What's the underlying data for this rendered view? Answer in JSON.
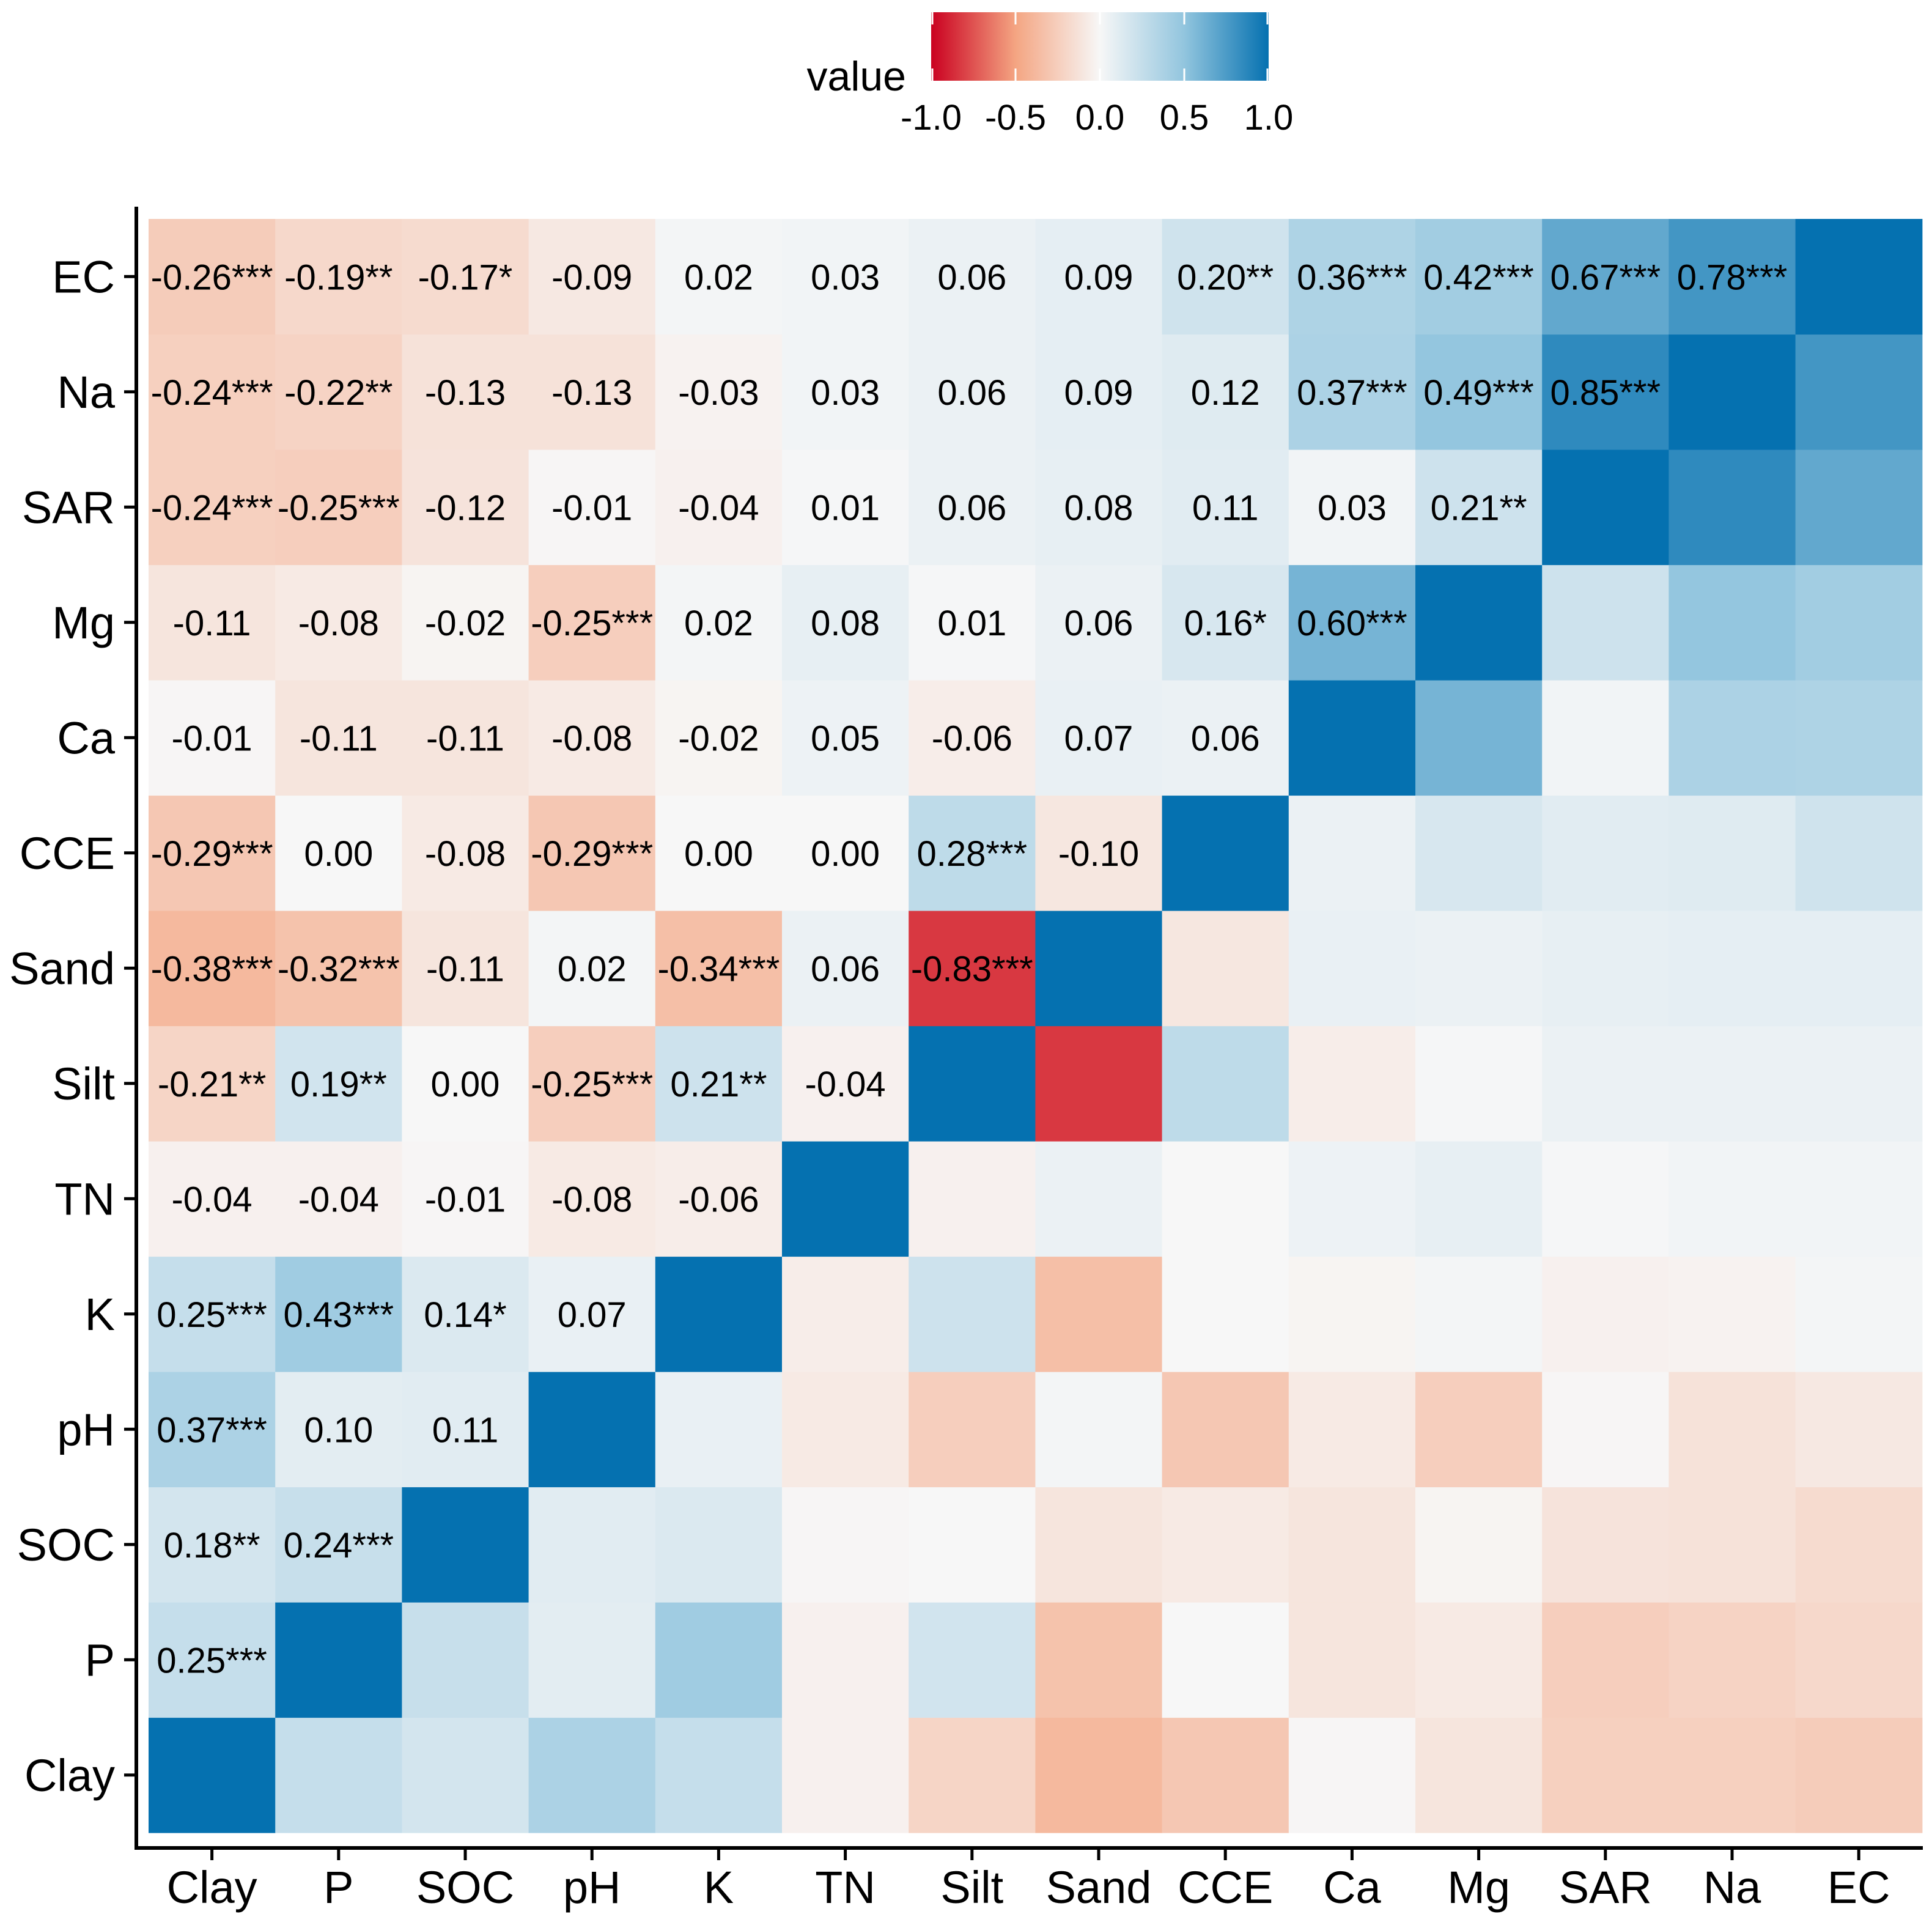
{
  "chart_data": {
    "type": "heatmap",
    "title": "",
    "xlabel": "",
    "ylabel": "",
    "variables": [
      "Clay",
      "P",
      "SOC",
      "pH",
      "K",
      "TN",
      "Silt",
      "Sand",
      "CCE",
      "Ca",
      "Mg",
      "SAR",
      "Na",
      "EC"
    ],
    "x_categories": [
      "Clay",
      "P",
      "SOC",
      "pH",
      "K",
      "TN",
      "Silt",
      "Sand",
      "CCE",
      "Ca",
      "Mg",
      "SAR",
      "Na",
      "EC"
    ],
    "y_categories_top_to_bottom": [
      "EC",
      "Na",
      "SAR",
      "Mg",
      "Ca",
      "CCE",
      "Sand",
      "Silt",
      "TN",
      "K",
      "pH",
      "SOC",
      "P",
      "Clay"
    ],
    "matrix": [
      [
        1.0,
        0.25,
        0.18,
        0.37,
        0.25,
        -0.04,
        -0.21,
        -0.38,
        -0.29,
        -0.01,
        -0.11,
        -0.24,
        -0.24,
        -0.26
      ],
      [
        0.25,
        1.0,
        0.24,
        0.1,
        0.43,
        -0.04,
        0.19,
        -0.32,
        0.0,
        -0.11,
        -0.08,
        -0.25,
        -0.22,
        -0.19
      ],
      [
        0.18,
        0.24,
        1.0,
        0.11,
        0.14,
        -0.01,
        0.0,
        -0.11,
        -0.08,
        -0.11,
        -0.02,
        -0.12,
        -0.13,
        -0.17
      ],
      [
        0.37,
        0.1,
        0.11,
        1.0,
        0.07,
        -0.08,
        -0.25,
        0.02,
        -0.29,
        -0.08,
        -0.25,
        -0.01,
        -0.13,
        -0.09
      ],
      [
        0.25,
        0.43,
        0.14,
        0.07,
        1.0,
        -0.06,
        0.21,
        -0.34,
        0.0,
        -0.02,
        0.02,
        -0.04,
        -0.03,
        0.02
      ],
      [
        -0.04,
        -0.04,
        -0.01,
        -0.08,
        -0.06,
        1.0,
        -0.04,
        0.06,
        0.0,
        0.05,
        0.08,
        0.01,
        0.03,
        0.03
      ],
      [
        -0.21,
        0.19,
        0.0,
        -0.25,
        0.21,
        -0.04,
        1.0,
        -0.83,
        0.28,
        -0.06,
        0.01,
        0.06,
        0.06,
        0.06
      ],
      [
        -0.38,
        -0.32,
        -0.11,
        0.02,
        -0.34,
        0.06,
        -0.83,
        1.0,
        -0.1,
        0.07,
        0.06,
        0.08,
        0.09,
        0.09
      ],
      [
        -0.29,
        0.0,
        -0.08,
        -0.29,
        0.0,
        0.0,
        0.28,
        -0.1,
        1.0,
        0.06,
        0.16,
        0.11,
        0.12,
        0.2
      ],
      [
        -0.01,
        -0.11,
        -0.11,
        -0.08,
        -0.02,
        0.05,
        -0.06,
        0.07,
        0.06,
        1.0,
        0.6,
        0.03,
        0.37,
        0.36
      ],
      [
        -0.11,
        -0.08,
        -0.02,
        -0.25,
        0.02,
        0.08,
        0.01,
        0.06,
        0.16,
        0.6,
        1.0,
        0.21,
        0.49,
        0.42
      ],
      [
        -0.24,
        -0.25,
        -0.12,
        -0.01,
        -0.04,
        0.01,
        0.06,
        0.08,
        0.11,
        0.03,
        0.21,
        1.0,
        0.85,
        0.67
      ],
      [
        -0.24,
        -0.22,
        -0.13,
        -0.13,
        -0.03,
        0.03,
        0.06,
        0.09,
        0.12,
        0.37,
        0.49,
        0.85,
        1.0,
        0.78
      ],
      [
        -0.26,
        -0.19,
        -0.17,
        -0.09,
        0.02,
        0.03,
        0.06,
        0.09,
        0.2,
        0.36,
        0.42,
        0.67,
        0.78,
        1.0
      ]
    ],
    "significance": [
      [
        "",
        "***",
        "**",
        "***",
        "***",
        "",
        "**",
        "***",
        "***",
        "",
        "",
        "***",
        "***",
        "***"
      ],
      [
        "***",
        "",
        "***",
        "",
        "***",
        "",
        "**",
        "***",
        "",
        "",
        "",
        "***",
        "**",
        "**"
      ],
      [
        "**",
        "***",
        "",
        "",
        "*",
        "",
        "",
        "",
        "",
        "",
        "",
        "",
        "",
        "*"
      ],
      [
        "***",
        "",
        "",
        "",
        "",
        "",
        "***",
        "",
        "***",
        "",
        "***",
        "",
        "",
        ""
      ],
      [
        "***",
        "***",
        "*",
        "",
        "",
        "",
        "**",
        "***",
        "",
        "",
        "",
        "",
        "",
        ""
      ],
      [
        "",
        "",
        "",
        "",
        "",
        "",
        "",
        "",
        "",
        "",
        "",
        "",
        "",
        ""
      ],
      [
        "**",
        "**",
        "",
        "***",
        "**",
        "",
        "",
        "***",
        "***",
        "",
        "",
        "",
        "",
        ""
      ],
      [
        "***",
        "***",
        "",
        "",
        "***",
        "",
        "***",
        "",
        "",
        "",
        "",
        "",
        "",
        ""
      ],
      [
        "***",
        "",
        "",
        "***",
        "",
        "",
        "***",
        "",
        "",
        "",
        "*",
        "",
        "",
        "**"
      ],
      [
        "",
        "",
        "",
        "",
        "",
        "",
        "",
        "",
        "",
        "",
        "***",
        "",
        "***",
        "***"
      ],
      [
        "",
        "",
        "",
        "***",
        "",
        "",
        "",
        "",
        "*",
        "***",
        "",
        "**",
        "***",
        "***"
      ],
      [
        "***",
        "***",
        "",
        "",
        "",
        "",
        "",
        "",
        "",
        "",
        "**",
        "",
        "***",
        "***"
      ],
      [
        "***",
        "**",
        "",
        "",
        "",
        "",
        "",
        "",
        "",
        "***",
        "***",
        "***",
        "",
        "***"
      ],
      [
        "***",
        "**",
        "*",
        "",
        "",
        "",
        "",
        "",
        "**",
        "***",
        "***",
        "***",
        "***",
        ""
      ]
    ],
    "labels_shown": "lower-left triangle (x index below y index in variable order)",
    "legend": {
      "title": "value",
      "position": "top",
      "range": [
        -1.0,
        1.0
      ],
      "ticks": [
        "-1.0",
        "-0.5",
        "0.0",
        "0.5",
        "1.0"
      ],
      "colors": {
        "low": "#CA0020",
        "mid": "#F7F7F7",
        "high": "#0571B0"
      }
    }
  }
}
